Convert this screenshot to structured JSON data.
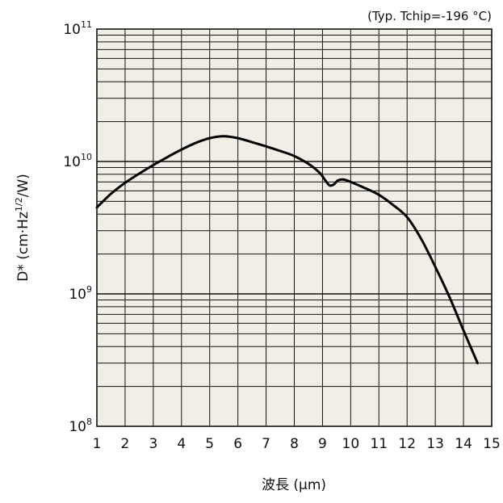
{
  "chart_data": {
    "type": "line",
    "annotation": "(Typ. Tchip=-196 °C)",
    "xlabel": "波長 (μm)",
    "ylabel_base": "D* (cm·Hz",
    "ylabel_sup": "1/2",
    "ylabel_tail": "/W)",
    "x_scale": "linear",
    "y_scale": "log",
    "xlim": [
      1,
      15
    ],
    "ylim": [
      100000000,
      100000000000
    ],
    "x_ticks": [
      "1",
      "2",
      "3",
      "4",
      "5",
      "6",
      "7",
      "8",
      "9",
      "10",
      "11",
      "12",
      "13",
      "14",
      "15"
    ],
    "y_ticks": [
      {
        "value": 100000000,
        "base": "10",
        "exp": "8"
      },
      {
        "value": 1000000000,
        "base": "10",
        "exp": "9"
      },
      {
        "value": 10000000000,
        "base": "10",
        "exp": "10"
      },
      {
        "value": 100000000000,
        "base": "10",
        "exp": "11"
      }
    ],
    "grid": true,
    "colors": {
      "plot_background": "#f1efe5",
      "grid": "#111111",
      "line": "#000000"
    },
    "series": [
      {
        "points": [
          [
            1.0,
            4500000000
          ],
          [
            1.5,
            5700000000
          ],
          [
            2.0,
            6900000000
          ],
          [
            2.5,
            8100000000
          ],
          [
            3.0,
            9400000000
          ],
          [
            3.5,
            10800000000
          ],
          [
            4.0,
            12300000000
          ],
          [
            4.5,
            13800000000
          ],
          [
            5.0,
            15000000000
          ],
          [
            5.5,
            15500000000
          ],
          [
            6.0,
            15000000000
          ],
          [
            6.5,
            14000000000
          ],
          [
            7.0,
            13000000000
          ],
          [
            7.5,
            12000000000
          ],
          [
            8.0,
            11000000000
          ],
          [
            8.5,
            9600000000
          ],
          [
            8.9,
            8200000000
          ],
          [
            9.1,
            7200000000
          ],
          [
            9.25,
            6600000000
          ],
          [
            9.4,
            6700000000
          ],
          [
            9.55,
            7200000000
          ],
          [
            9.75,
            7300000000
          ],
          [
            10.0,
            7000000000
          ],
          [
            10.5,
            6300000000
          ],
          [
            11.0,
            5600000000
          ],
          [
            11.5,
            4700000000
          ],
          [
            12.0,
            3800000000
          ],
          [
            12.5,
            2600000000
          ],
          [
            13.0,
            1600000000
          ],
          [
            13.5,
            950000000
          ],
          [
            14.0,
            530000000
          ],
          [
            14.5,
            300000000
          ]
        ]
      }
    ]
  }
}
